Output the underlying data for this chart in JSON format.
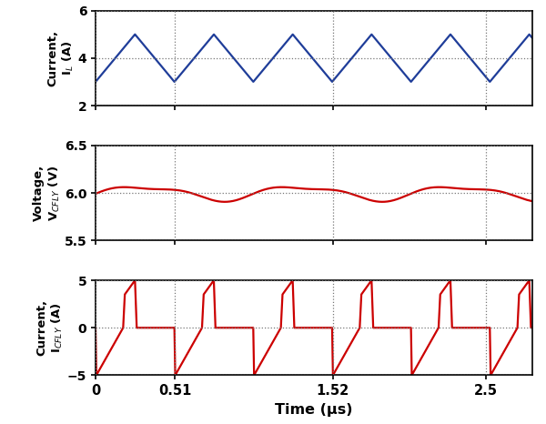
{
  "xlabel": "Time (μs)",
  "xlim": [
    0,
    2.8
  ],
  "xticks": [
    0,
    0.51,
    1.52,
    2.5
  ],
  "xticklabels": [
    "0",
    "0.51",
    "1.52",
    "2.5"
  ],
  "plot1": {
    "ylabel": "Current,\nI$_L$ (A)",
    "ylim": [
      2,
      6
    ],
    "yticks": [
      2,
      4,
      6
    ],
    "color": "#1f3d99",
    "linewidth": 1.6
  },
  "plot2": {
    "ylabel": "Voltage,\nV$_{CFLY}$ (V)",
    "ylim": [
      5.5,
      6.5
    ],
    "yticks": [
      5.5,
      6.0,
      6.5
    ],
    "color": "#cc0000",
    "linewidth": 1.6
  },
  "plot3": {
    "ylabel": "Current,\nI$_{CFLY}$ (A)",
    "ylim": [
      -5,
      5
    ],
    "yticks": [
      -5,
      0,
      5
    ],
    "color": "#cc0000",
    "linewidth": 1.6
  },
  "period": 0.5055,
  "fig_width": 6.0,
  "fig_height": 4.66,
  "dpi": 100,
  "background_color": "#ffffff",
  "grid_color": "#777777",
  "grid_linestyle": ":",
  "grid_linewidth": 0.9
}
